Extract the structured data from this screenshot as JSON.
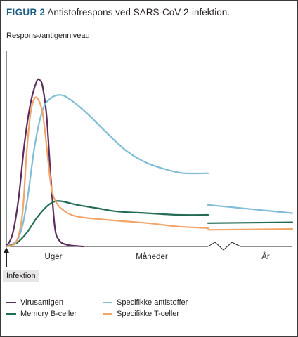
{
  "title": {
    "figure_label": "FIGUR 2",
    "text": "Antistofrespons ved SARS-CoV-2-infektion."
  },
  "colors": {
    "figure_label": "#1f5f86",
    "virus_antigen": "#5b2c5e",
    "memory_b": "#236b55",
    "antibodies": "#7fbcd6",
    "t_cells": "#f2a469",
    "axis": "#231f20"
  },
  "chart_data": {
    "type": "line",
    "ylabel": "Respons-/antigenniveau",
    "x_segments": [
      "Uger",
      "Måneder",
      "År"
    ],
    "x_break": "between Måneder and År",
    "start_marker": "Infektion",
    "y_ticks": "none",
    "grid": false,
    "legend_position": "bottom",
    "series": [
      {
        "name": "Virusantigen",
        "color": "#5b2c5e",
        "points": [
          [
            0,
            0.0
          ],
          [
            0.03,
            0.07
          ],
          [
            0.06,
            0.28
          ],
          [
            0.09,
            0.62
          ],
          [
            0.12,
            0.86
          ],
          [
            0.15,
            0.99
          ],
          [
            0.165,
            1.0
          ],
          [
            0.18,
            0.96
          ],
          [
            0.2,
            0.78
          ],
          [
            0.22,
            0.42
          ],
          [
            0.24,
            0.12
          ],
          [
            0.26,
            0.04
          ],
          [
            0.3,
            0.01
          ],
          [
            0.38,
            0.0
          ]
        ]
      },
      {
        "name": "Specifikke antistoffer",
        "color": "#7fbcd6",
        "points": [
          [
            0,
            0.0
          ],
          [
            0.06,
            0.05
          ],
          [
            0.1,
            0.25
          ],
          [
            0.14,
            0.6
          ],
          [
            0.18,
            0.82
          ],
          [
            0.22,
            0.89
          ],
          [
            0.27,
            0.91
          ],
          [
            0.32,
            0.88
          ],
          [
            0.4,
            0.8
          ],
          [
            0.5,
            0.68
          ],
          [
            0.6,
            0.57
          ],
          [
            0.7,
            0.5
          ],
          [
            0.8,
            0.46
          ],
          [
            0.88,
            0.44
          ],
          [
            1.0,
            0.44
          ]
        ],
        "after_break": [
          [
            1.0,
            0.25
          ],
          [
            1.3,
            0.2
          ]
        ]
      },
      {
        "name": "Memory B-celler",
        "color": "#236b55",
        "points": [
          [
            0,
            0.0
          ],
          [
            0.05,
            0.02
          ],
          [
            0.1,
            0.08
          ],
          [
            0.15,
            0.17
          ],
          [
            0.2,
            0.24
          ],
          [
            0.24,
            0.27
          ],
          [
            0.28,
            0.27
          ],
          [
            0.35,
            0.25
          ],
          [
            0.45,
            0.23
          ],
          [
            0.55,
            0.21
          ],
          [
            0.7,
            0.2
          ],
          [
            0.85,
            0.19
          ],
          [
            1.0,
            0.19
          ]
        ],
        "after_break": [
          [
            1.0,
            0.14
          ],
          [
            1.3,
            0.145
          ]
        ]
      },
      {
        "name": "Specifikke T-celler",
        "color": "#f2a469",
        "points": [
          [
            0,
            0.0
          ],
          [
            0.05,
            0.03
          ],
          [
            0.08,
            0.2
          ],
          [
            0.1,
            0.55
          ],
          [
            0.12,
            0.8
          ],
          [
            0.14,
            0.89
          ],
          [
            0.16,
            0.88
          ],
          [
            0.18,
            0.8
          ],
          [
            0.2,
            0.6
          ],
          [
            0.22,
            0.38
          ],
          [
            0.24,
            0.28
          ],
          [
            0.28,
            0.22
          ],
          [
            0.35,
            0.18
          ],
          [
            0.5,
            0.16
          ],
          [
            0.7,
            0.14
          ],
          [
            0.85,
            0.12
          ],
          [
            1.0,
            0.11
          ]
        ],
        "after_break": [
          [
            1.0,
            0.1
          ],
          [
            1.3,
            0.105
          ]
        ]
      }
    ]
  },
  "legend": [
    {
      "label": "Virusantigen",
      "color": "#5b2c5e"
    },
    {
      "label": "Specifikke antistoffer",
      "color": "#7fbcd6"
    },
    {
      "label": "Memory B-celler",
      "color": "#236b55"
    },
    {
      "label": "Specifikke T-celler",
      "color": "#f2a469"
    }
  ]
}
